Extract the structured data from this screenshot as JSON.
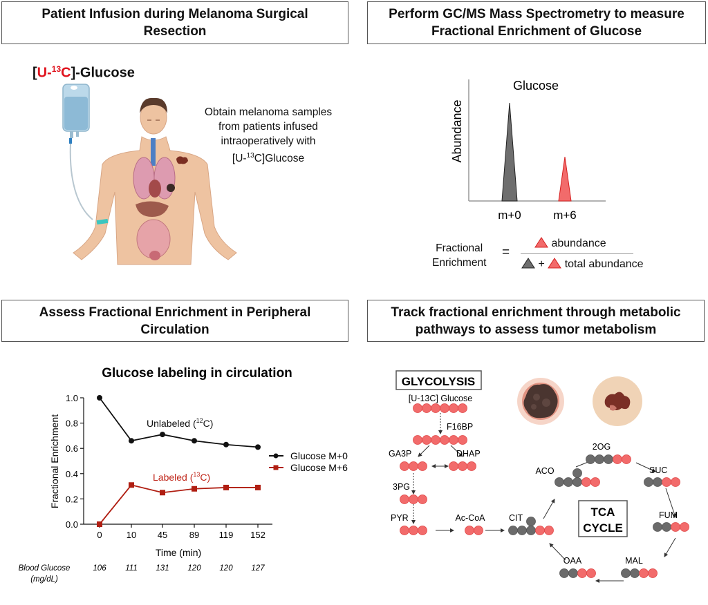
{
  "panels": {
    "p1": {
      "title": "Patient Infusion during Melanoma Surgical Resection",
      "tracer_label": {
        "pre": "[",
        "red": "U-",
        "sup": "13",
        "red2": "C",
        "post": "]-Glucose"
      },
      "description": [
        "Obtain melanoma samples",
        "from patients infused",
        "intraoperatively with"
      ],
      "description_last": {
        "pre": "[U-",
        "sup": "13",
        "post": "C]Glucose"
      }
    },
    "p2": {
      "title": "Perform GC/MS Mass Spectrometry to measure Fractional Enrichment of Glucose",
      "spectrum": {
        "title": "Glucose",
        "ylabel": "Abundance",
        "peaks": [
          {
            "label": "m+0",
            "relative_height": 1.0,
            "color": "#6e6e6e"
          },
          {
            "label": "m+6",
            "relative_height": 0.45,
            "color": "#f26b6b"
          }
        ]
      },
      "formula": {
        "lhs": [
          "Fractional",
          "Enrichment"
        ],
        "equals": "=",
        "numerator": "abundance",
        "plus": "+",
        "denominator": "total abundance"
      }
    },
    "p3": {
      "title": "Assess Fractional Enrichment in Peripheral Circulation"
    },
    "p4": {
      "title": "Track fractional enrichment through metabolic pathways to assess tumor metabolism",
      "glycolysis_label": "GLYCOLYSIS",
      "tca_label": [
        "TCA",
        "CYCLE"
      ],
      "metabolites": {
        "glucose": "[U-13C] Glucose",
        "f16bp": "F16BP",
        "ga3p": "GA3P",
        "dhap": "DHAP",
        "pg3": "3PG",
        "pyr": "PYR",
        "accoa": "Ac-CoA",
        "cit": "CIT",
        "aco": "ACO",
        "og2": "2OG",
        "suc": "SUC",
        "fum": "FUM",
        "mal": "MAL",
        "oaa": "OAA"
      },
      "colors": {
        "labeled": "#f26b6b",
        "unlabeled": "#6b6b6b"
      }
    }
  },
  "chart_data": {
    "type": "line",
    "title": "Glucose labeling in circulation",
    "xlabel": "Time (min)",
    "ylabel": "Fractional  Enrichment",
    "categories": [
      "0",
      "10",
      "45",
      "89",
      "119",
      "152"
    ],
    "ylim": [
      0,
      1.0
    ],
    "yticks": [
      "0.0",
      "0.2",
      "0.4",
      "0.6",
      "0.8",
      "1.0"
    ],
    "grid": false,
    "legend_position": "right",
    "series": [
      {
        "name": "Glucose M+0",
        "values": [
          1.0,
          0.66,
          0.71,
          0.66,
          0.63,
          0.61
        ],
        "color": "#111111",
        "marker": "circle",
        "annotation": {
          "pre": "Unlabeled (",
          "sup": "12",
          "post": "C)"
        }
      },
      {
        "name": "Glucose M+6",
        "values": [
          0.0,
          0.31,
          0.25,
          0.28,
          0.29,
          0.29
        ],
        "color": "#b01e12",
        "marker": "square",
        "annotation": {
          "pre": "Labeled (",
          "sup": "13",
          "post": "C)"
        }
      }
    ],
    "blood_glucose": {
      "label": [
        "Blood Glucose",
        "(mg/dL)"
      ],
      "values": [
        "106",
        "111",
        "131",
        "120",
        "120",
        "127"
      ]
    }
  }
}
